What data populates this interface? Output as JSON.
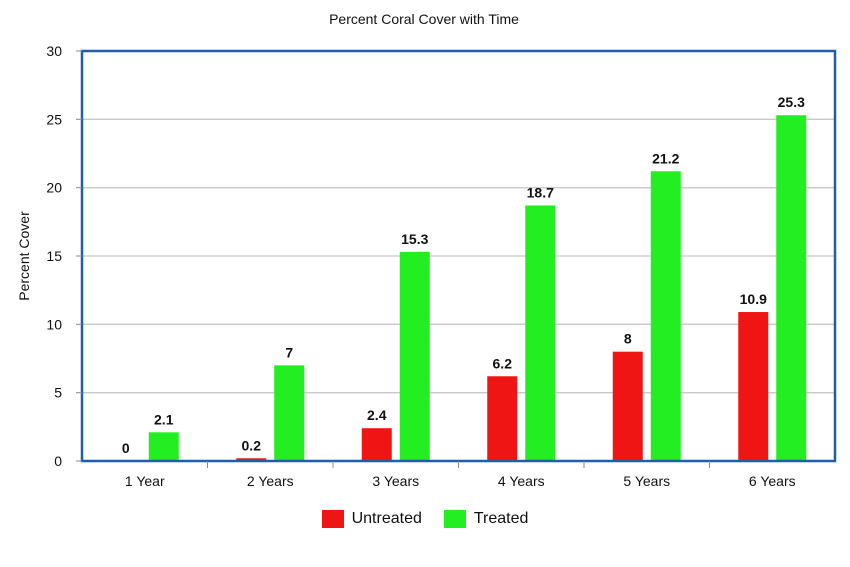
{
  "chart_data": {
    "type": "bar",
    "title": "Percent Coral Cover with Time",
    "xlabel": "",
    "ylabel": "Percent Cover",
    "categories": [
      "1 Year",
      "2 Years",
      "3 Years",
      "4 Years",
      "5 Years",
      "6 Years"
    ],
    "series": [
      {
        "name": "Untreated",
        "color": "#f01515",
        "values": [
          0,
          0.2,
          2.4,
          6.2,
          8,
          10.9
        ],
        "labels": [
          "0",
          "0.2",
          "2.4",
          "6.2",
          "8",
          "10.9"
        ]
      },
      {
        "name": "Treated",
        "color": "#22ee22",
        "values": [
          2.1,
          7,
          15.3,
          18.7,
          21.2,
          25.3
        ],
        "labels": [
          "2.1",
          "7",
          "15.3",
          "18.7",
          "21.2",
          "25.3"
        ]
      }
    ],
    "ylim": [
      0,
      30
    ],
    "yticks": [
      0,
      5,
      10,
      15,
      20,
      25,
      30
    ],
    "ytick_labels": [
      "0",
      "5",
      "10",
      "15",
      "20",
      "25",
      "30"
    ],
    "grid": true,
    "legend_position": "bottom-center",
    "frame_color": "#1f5fa8",
    "grid_color": "#c8c8c8"
  }
}
